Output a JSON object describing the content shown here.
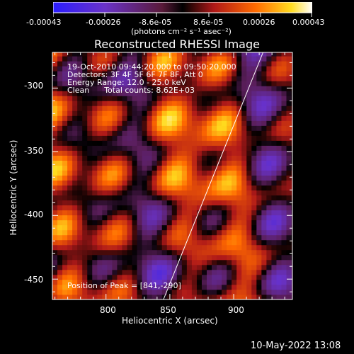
{
  "colorbar": {
    "tick_labels": [
      "-0.00043",
      "-0.00026",
      "-8.6e-05",
      "8.6e-05",
      "0.00026",
      "0.00043"
    ],
    "units": "(photons cm⁻² s⁻¹ asec⁻²)"
  },
  "chart_data": {
    "type": "heatmap",
    "title": "Reconstructed RHESSI Image",
    "xlabel": "Heliocentric X (arcsec)",
    "ylabel": "Heliocentric Y (arcsec)",
    "xlim": [
      758,
      946
    ],
    "ylim": [
      -466,
      -272
    ],
    "xticks": [
      800,
      850,
      900
    ],
    "yticks": [
      -300,
      -350,
      -400,
      -450
    ],
    "color_range": [
      -0.00043,
      0.00043
    ],
    "colormap": "black-blue-purple-red-orange-yellow-white",
    "peak": [
      841,
      -290
    ],
    "limb_line": {
      "from": [
        845,
        -466
      ],
      "to": [
        923,
        -272
      ]
    },
    "annotations": [
      "19-Oct-2010 09:44:20.000 to 09:50:20.000",
      "Detectors: 3F 4F 5F 6F 7F 8F, Att 0",
      "Energy Range: 12.0 - 25.0 keV",
      "Clean      Total counts: 8.62E+03",
      "Position of Peak = [841,-290]"
    ]
  },
  "footer": {
    "timestamp": "10-May-2022 13:08"
  }
}
